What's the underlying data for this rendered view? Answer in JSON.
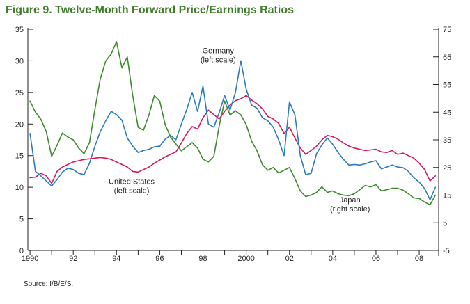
{
  "figure": {
    "title": "Figure 9. Twelve-Month Forward Price/Earnings Ratios",
    "source": "Source: I/B/E/S."
  },
  "colors": {
    "united_states": "#d6195f",
    "germany": "#2a7bbf",
    "japan": "#3d8a2e",
    "axis": "#231f20",
    "title": "#3f7d2b"
  },
  "chart_data": {
    "type": "line",
    "title": "Figure 9. Twelve-Month Forward Price/Earnings Ratios",
    "xlabel": "",
    "ylabel_left": "",
    "ylabel_right": "",
    "xlim": [
      1989.9,
      2008.9
    ],
    "ylim_left": [
      0,
      35
    ],
    "ylim_right": [
      -5,
      75
    ],
    "grid": false,
    "legend": "inline annotations",
    "x_tick_labels": [
      "1990",
      "92",
      "94",
      "96",
      "98",
      "2000",
      "02",
      "04",
      "06",
      "08"
    ],
    "x_tick_years": [
      1990,
      1992,
      1994,
      1996,
      1998,
      2000,
      2002,
      2004,
      2006,
      2008
    ],
    "left_ticks": [
      0,
      5,
      10,
      15,
      20,
      25,
      30,
      35
    ],
    "right_ticks": [
      -5,
      5,
      15,
      25,
      35,
      45,
      55,
      65,
      75
    ],
    "annotations": [
      {
        "lines": [
          "Germany",
          "(left scale)"
        ],
        "x": 1998.7,
        "y": 31.2,
        "axis": "left"
      },
      {
        "lines": [
          "United States",
          "(left scale)"
        ],
        "x": 1994.7,
        "y": 10.5,
        "axis": "left"
      },
      {
        "lines": [
          "Japan",
          "(right scale)"
        ],
        "x": 2004.8,
        "y": 7.6,
        "axis": "left"
      }
    ],
    "series": [
      {
        "name": "United States",
        "axis": "left",
        "color": "#d6195f",
        "x": [
          1990.0,
          1990.25,
          1990.5,
          1990.75,
          1991.0,
          1991.25,
          1991.5,
          1991.75,
          1992.0,
          1992.25,
          1992.5,
          1992.75,
          1993.0,
          1993.25,
          1993.5,
          1993.75,
          1994.0,
          1994.25,
          1994.5,
          1994.75,
          1995.0,
          1995.25,
          1995.5,
          1995.75,
          1996.0,
          1996.25,
          1996.5,
          1996.75,
          1997.0,
          1997.25,
          1997.5,
          1997.75,
          1998.0,
          1998.25,
          1998.5,
          1998.75,
          1999.0,
          1999.25,
          1999.5,
          1999.75,
          2000.0,
          2000.25,
          2000.5,
          2000.75,
          2001.0,
          2001.25,
          2001.5,
          2001.75,
          2002.0,
          2002.25,
          2002.5,
          2002.75,
          2003.0,
          2003.25,
          2003.5,
          2003.75,
          2004.0,
          2004.25,
          2004.5,
          2004.75,
          2005.0,
          2005.25,
          2005.5,
          2005.75,
          2006.0,
          2006.25,
          2006.5,
          2006.75,
          2007.0,
          2007.25,
          2007.5,
          2007.75,
          2008.0,
          2008.25,
          2008.5,
          2008.75
        ],
        "values": [
          11.5,
          11.6,
          12.2,
          11.8,
          10.6,
          12.5,
          13.2,
          13.6,
          14.0,
          14.2,
          14.4,
          14.5,
          14.6,
          14.7,
          14.6,
          14.4,
          14.0,
          13.6,
          13.2,
          12.5,
          12.4,
          12.8,
          13.2,
          13.8,
          14.3,
          14.8,
          15.2,
          15.6,
          17.0,
          18.5,
          19.6,
          19.2,
          21.0,
          22.2,
          21.5,
          20.8,
          22.0,
          23.0,
          23.7,
          24.0,
          24.5,
          23.8,
          23.2,
          22.4,
          21.2,
          20.8,
          20.1,
          18.5,
          19.5,
          17.8,
          16.2,
          15.2,
          15.8,
          16.5,
          17.5,
          18.2,
          18.0,
          17.6,
          17.0,
          16.5,
          16.2,
          16.0,
          15.8,
          15.9,
          16.0,
          15.6,
          15.5,
          15.8,
          15.2,
          15.4,
          15.0,
          14.6,
          13.8,
          12.8,
          11.0,
          11.8
        ]
      },
      {
        "name": "Germany",
        "axis": "left",
        "color": "#2a7bbf",
        "x": [
          1990.0,
          1990.25,
          1990.5,
          1990.75,
          1991.0,
          1991.25,
          1991.5,
          1991.75,
          1992.0,
          1992.25,
          1992.5,
          1992.75,
          1993.0,
          1993.25,
          1993.5,
          1993.75,
          1994.0,
          1994.25,
          1994.5,
          1994.75,
          1995.0,
          1995.25,
          1995.5,
          1995.75,
          1996.0,
          1996.25,
          1996.5,
          1996.75,
          1997.0,
          1997.25,
          1997.5,
          1997.75,
          1998.0,
          1998.25,
          1998.5,
          1998.75,
          1999.0,
          1999.25,
          1999.5,
          1999.75,
          2000.0,
          2000.25,
          2000.5,
          2000.75,
          2001.0,
          2001.25,
          2001.5,
          2001.75,
          2002.0,
          2002.25,
          2002.5,
          2002.75,
          2003.0,
          2003.25,
          2003.5,
          2003.75,
          2004.0,
          2004.25,
          2004.5,
          2004.75,
          2005.0,
          2005.25,
          2005.5,
          2005.75,
          2006.0,
          2006.25,
          2006.5,
          2006.75,
          2007.0,
          2007.25,
          2007.5,
          2007.75,
          2008.0,
          2008.25,
          2008.5,
          2008.75
        ],
        "values": [
          18.5,
          12.5,
          11.8,
          11.0,
          10.2,
          11.2,
          12.4,
          13.0,
          12.8,
          12.2,
          12.0,
          13.8,
          16.5,
          18.8,
          20.5,
          22.0,
          21.5,
          20.6,
          17.8,
          16.5,
          15.5,
          15.8,
          16.0,
          16.4,
          16.5,
          17.6,
          18.2,
          17.5,
          20.0,
          22.3,
          25.0,
          22.0,
          26.0,
          20.0,
          19.5,
          21.8,
          24.5,
          22.2,
          25.0,
          30.0,
          25.5,
          23.0,
          22.5,
          21.0,
          20.5,
          19.5,
          17.5,
          15.0,
          23.5,
          21.5,
          15.0,
          12.0,
          12.2,
          15.3,
          16.7,
          17.8,
          16.8,
          15.5,
          14.4,
          13.5,
          13.6,
          13.5,
          13.7,
          14.0,
          14.2,
          12.9,
          13.2,
          13.5,
          13.2,
          13.1,
          12.5,
          11.5,
          10.8,
          9.8,
          8.0,
          10.0
        ]
      },
      {
        "name": "Japan",
        "axis": "right",
        "color": "#3d8a2e",
        "x": [
          1990.0,
          1990.25,
          1990.5,
          1990.75,
          1991.0,
          1991.25,
          1991.5,
          1991.75,
          1992.0,
          1992.25,
          1992.5,
          1992.75,
          1993.0,
          1993.25,
          1993.5,
          1993.75,
          1994.0,
          1994.25,
          1994.5,
          1994.75,
          1995.0,
          1995.25,
          1995.5,
          1995.75,
          1996.0,
          1996.25,
          1996.5,
          1996.75,
          1997.0,
          1997.25,
          1997.5,
          1997.75,
          1998.0,
          1998.25,
          1998.5,
          1998.75,
          1999.0,
          1999.25,
          1999.5,
          1999.75,
          2000.0,
          2000.25,
          2000.5,
          2000.75,
          2001.0,
          2001.25,
          2001.5,
          2001.75,
          2002.0,
          2002.25,
          2002.5,
          2002.75,
          2003.0,
          2003.25,
          2003.5,
          2003.75,
          2004.0,
          2004.25,
          2004.5,
          2004.75,
          2005.0,
          2005.25,
          2005.5,
          2005.75,
          2006.0,
          2006.25,
          2006.5,
          2006.75,
          2007.0,
          2007.25,
          2007.5,
          2007.75,
          2008.0,
          2008.25,
          2008.5,
          2008.75
        ],
        "values": [
          49.0,
          45.0,
          42.5,
          38.0,
          29.0,
          33.0,
          37.5,
          36.0,
          35.0,
          32.0,
          30.0,
          34.0,
          46.0,
          57.0,
          63.5,
          66.0,
          70.5,
          61.0,
          65.0,
          51.0,
          39.5,
          38.5,
          44.0,
          51.0,
          49.0,
          40.5,
          36.0,
          33.5,
          31.0,
          32.5,
          34.0,
          32.0,
          28.0,
          27.0,
          29.0,
          40.0,
          49.0,
          44.0,
          45.5,
          44.0,
          40.5,
          34.5,
          31.0,
          26.0,
          24.0,
          25.0,
          23.0,
          24.0,
          25.0,
          21.0,
          16.5,
          14.5,
          15.0,
          16.0,
          18.0,
          16.0,
          16.5,
          15.5,
          15.0,
          14.8,
          15.5,
          17.0,
          18.5,
          18.0,
          18.8,
          16.5,
          17.0,
          17.5,
          17.5,
          16.8,
          15.5,
          14.0,
          13.8,
          12.5,
          11.5,
          15.0
        ]
      }
    ]
  }
}
